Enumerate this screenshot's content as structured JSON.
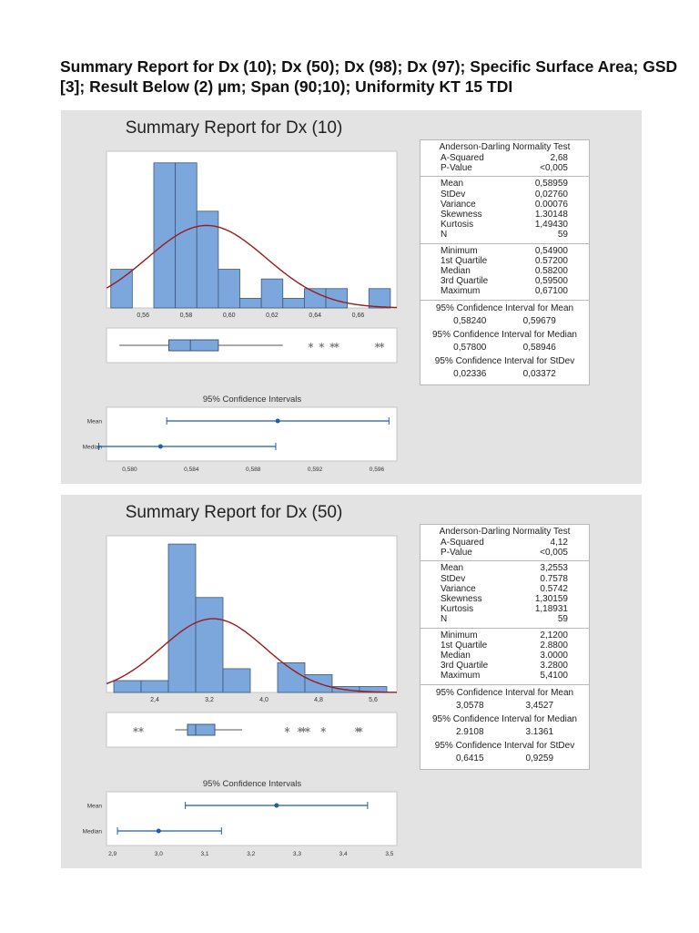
{
  "document": {
    "title": "Summary Report for Dx (10); Dx (50); Dx (98); Dx (97); Specific Surface Area; GSD [3]; Result Below (2) µm; Span (90;10); Uniformity KT 15 TDI"
  },
  "colors": {
    "bar": "#7ba7dc",
    "bar_edge": "#3f5878",
    "curve": "#9c1a1a",
    "ci": "#1f5ea8",
    "panel": "#e3e3e3"
  },
  "chart_data": [
    {
      "type": "bar",
      "title": "Summary Report for Dx (10)",
      "histogram": {
        "bin_width": 0.01,
        "bin_centers": [
          0.55,
          0.56,
          0.57,
          0.58,
          0.59,
          0.6,
          0.61,
          0.62,
          0.63,
          0.64,
          0.65,
          0.66,
          0.67
        ],
        "counts": [
          4,
          0,
          15,
          15,
          10,
          4,
          1,
          3,
          1,
          2,
          2,
          0,
          2
        ],
        "xlim": [
          0.543,
          0.678
        ],
        "ylim": [
          0,
          16.2
        ],
        "x_ticks": [
          0.56,
          0.58,
          0.6,
          0.62,
          0.64,
          0.66
        ],
        "x_tick_labels": [
          "0,56",
          "0,58",
          "0,60",
          "0,62",
          "0,64",
          "0,66"
        ],
        "normal_fit": {
          "mean": 0.58959,
          "stdev": 0.0276,
          "n": 59
        }
      },
      "boxplot": {
        "whisker_low": 0.549,
        "q1": 0.572,
        "median": 0.582,
        "q3": 0.595,
        "whisker_high": 0.625,
        "outliers": [
          0.638,
          0.643,
          0.648,
          0.65,
          0.669,
          0.671
        ]
      },
      "ci_plot": {
        "title": "95% Confidence Intervals",
        "xlim": [
          0.5785,
          0.5973
        ],
        "x_ticks": [
          0.58,
          0.584,
          0.588,
          0.592,
          0.596
        ],
        "x_tick_labels": [
          "0,580",
          "0,584",
          "0,588",
          "0,592",
          "0,596"
        ],
        "rows": [
          {
            "label": "Mean",
            "low": 0.5824,
            "point": 0.58959,
            "high": 0.59679
          },
          {
            "label": "Median",
            "low": 0.578,
            "point": 0.582,
            "high": 0.58946
          }
        ]
      },
      "stats": {
        "ad_title": "Anderson-Darling Normality Test",
        "sections": [
          [
            [
              "A-Squared",
              "2,68"
            ],
            [
              "P-Value",
              "<0,005"
            ]
          ],
          [
            [
              "Mean",
              "0,58959"
            ],
            [
              "StDev",
              "0,02760"
            ],
            [
              "Variance",
              "0.00076"
            ],
            [
              "Skewness",
              "1.30148"
            ],
            [
              "Kurtosis",
              "1,49430"
            ],
            [
              "N",
              "59"
            ]
          ],
          [
            [
              "Minimum",
              "0,54900"
            ],
            [
              "1st Quartile",
              "0.57200"
            ],
            [
              "Median",
              "0.58200"
            ],
            [
              "3rd Quartile",
              "0,59500"
            ],
            [
              "Maximum",
              "0,67100"
            ]
          ]
        ],
        "cis": [
          {
            "title": "95% Confidence Interval for Mean",
            "low": "0,58240",
            "high": "0,59679"
          },
          {
            "title": "95% Confidence Interval for Median",
            "low": "0,57800",
            "high": "0,58946"
          },
          {
            "title": "95% Confidence Interval for StDev",
            "low": "0,02336",
            "high": "0,03372"
          }
        ]
      }
    },
    {
      "type": "bar",
      "title": "Summary Report for Dx (50)",
      "histogram": {
        "bin_width": 0.4,
        "bin_centers": [
          2.0,
          2.4,
          2.8,
          3.2,
          3.6,
          4.0,
          4.4,
          4.8,
          5.2,
          5.6
        ],
        "counts": [
          2,
          2,
          25,
          16,
          4,
          0,
          5,
          3,
          1,
          1
        ],
        "xlim": [
          1.693,
          5.947
        ],
        "ylim": [
          0,
          26.4
        ],
        "x_ticks": [
          2.4,
          3.2,
          4.0,
          4.8,
          5.6
        ],
        "x_tick_labels": [
          "2,4",
          "3,2",
          "4,0",
          "4,8",
          "5,6"
        ],
        "normal_fit": {
          "mean": 3.2553,
          "stdev": 0.7578,
          "n": 59
        }
      },
      "boxplot": {
        "whisker_low": 2.7,
        "q1": 2.88,
        "median": 3.0,
        "q3": 3.28,
        "whisker_high": 3.68,
        "outliers": [
          2.12,
          2.2,
          4.34,
          4.53,
          4.58,
          4.64,
          4.87,
          5.37,
          5.41
        ]
      },
      "ci_plot": {
        "title": "95% Confidence Intervals",
        "xlim": [
          2.887,
          3.516
        ],
        "x_ticks": [
          2.9,
          3.0,
          3.1,
          3.2,
          3.3,
          3.4,
          3.5
        ],
        "x_tick_labels": [
          "2,9",
          "3,0",
          "3,1",
          "3,2",
          "3,3",
          "3,4",
          "3,5"
        ],
        "rows": [
          {
            "label": "Mean",
            "low": 3.0578,
            "point": 3.2553,
            "high": 3.4527
          },
          {
            "label": "Median",
            "low": 2.9108,
            "point": 3.0,
            "high": 3.1361
          }
        ]
      },
      "stats": {
        "ad_title": "Anderson-Darling Normality Test",
        "sections": [
          [
            [
              "A-Squared",
              "4,12"
            ],
            [
              "P-Value",
              "<0,005"
            ]
          ],
          [
            [
              "Mean",
              "3,2553"
            ],
            [
              "StDev",
              "0.7578"
            ],
            [
              "Variance",
              "0.5742"
            ],
            [
              "Skewness",
              "1,30159"
            ],
            [
              "Kurtosis",
              "1,18931"
            ],
            [
              "N",
              "59"
            ]
          ],
          [
            [
              "Minimum",
              "2,1200"
            ],
            [
              "1st Quartile",
              "2.8800"
            ],
            [
              "Median",
              "3.0000"
            ],
            [
              "3rd Quartile",
              "3.2800"
            ],
            [
              "Maximum",
              "5,4100"
            ]
          ]
        ],
        "cis": [
          {
            "title": "95% Confidence Interval for Mean",
            "low": "3,0578",
            "high": "3,4527"
          },
          {
            "title": "95% Confidence Interval for Median",
            "low": "2.9108",
            "high": "3.1361"
          },
          {
            "title": "95% Confidence Interval for StDev",
            "low": "0,6415",
            "high": "0,9259"
          }
        ]
      }
    }
  ]
}
